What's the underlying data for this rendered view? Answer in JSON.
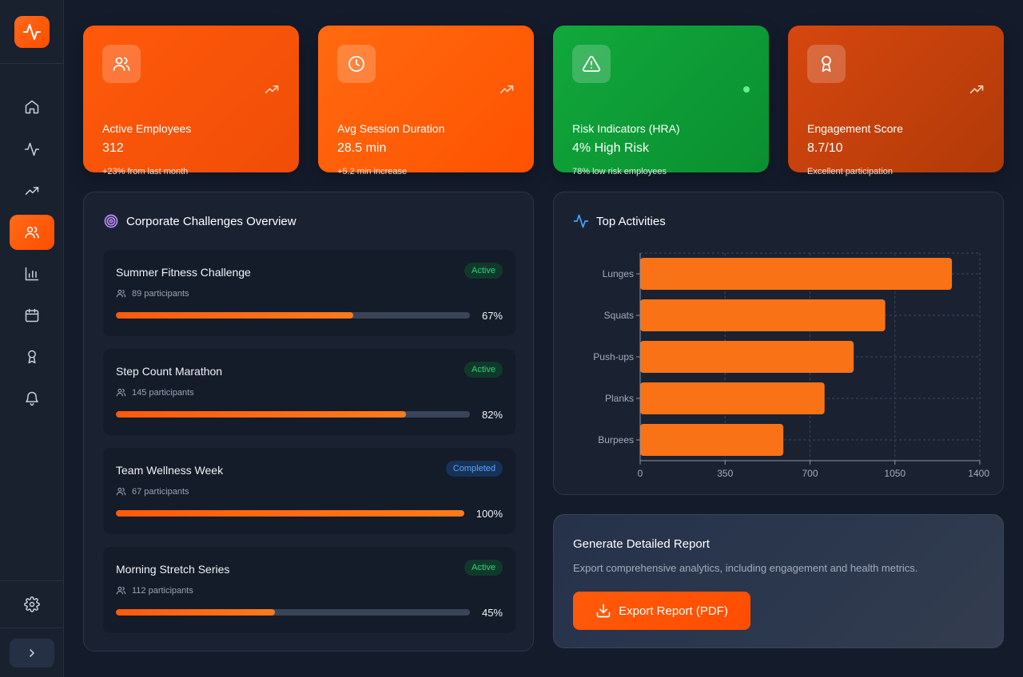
{
  "colors": {
    "accent": "#ff5a0a",
    "green": "#11a83c",
    "active_badge": "#2ed07a",
    "completed_badge": "#5aa3ff",
    "bar": "#f97316"
  },
  "sidebar": {
    "logo_icon": "activity-icon",
    "items": [
      {
        "icon": "home-icon",
        "active": false
      },
      {
        "icon": "activity-icon",
        "active": false
      },
      {
        "icon": "trending-up-icon",
        "active": false
      },
      {
        "icon": "users-icon",
        "active": true
      },
      {
        "icon": "bar-chart-icon",
        "active": false
      },
      {
        "icon": "calendar-icon",
        "active": false
      },
      {
        "icon": "award-icon",
        "active": false
      },
      {
        "icon": "bell-icon",
        "active": false
      }
    ],
    "settings_icon": "gear-icon",
    "expand_icon": "chevron-right-icon"
  },
  "stats": [
    {
      "label": "Active Employees",
      "value": "312",
      "sub": "+23% from last month",
      "icon": "users-icon",
      "corner": "trending-up-icon"
    },
    {
      "label": "Avg Session Duration",
      "value": "28.5 min",
      "sub": "+5.2 min increase",
      "icon": "clock-icon",
      "corner": "trending-up-icon"
    },
    {
      "label": "Risk Indicators (HRA)",
      "value": "4% High Risk",
      "sub": "78% low risk employees",
      "icon": "alert-triangle-icon",
      "corner": "status-dot"
    },
    {
      "label": "Engagement Score",
      "value": "8.7/10",
      "sub": "Excellent participation",
      "icon": "award-icon",
      "corner": "trending-up-icon"
    }
  ],
  "challenges": {
    "title": "Corporate Challenges Overview",
    "icon": "target-icon",
    "items": [
      {
        "name": "Summer Fitness Challenge",
        "participants": "89 participants",
        "status": "Active",
        "progress": 67,
        "progress_label": "67%"
      },
      {
        "name": "Step Count Marathon",
        "participants": "145 participants",
        "status": "Active",
        "progress": 82,
        "progress_label": "82%"
      },
      {
        "name": "Team Wellness Week",
        "participants": "67 participants",
        "status": "Completed",
        "progress": 100,
        "progress_label": "100%"
      },
      {
        "name": "Morning Stretch Series",
        "participants": "112 participants",
        "status": "Active",
        "progress": 45,
        "progress_label": "45%"
      }
    ]
  },
  "activities": {
    "title": "Top Activities",
    "icon": "activity-icon"
  },
  "chart_data": {
    "type": "bar",
    "orientation": "horizontal",
    "categories": [
      "Lunges",
      "Squats",
      "Push-ups",
      "Planks",
      "Burpees"
    ],
    "values": [
      1285,
      1010,
      880,
      760,
      590
    ],
    "xlim": [
      0,
      1400
    ],
    "xticks": [
      0,
      350,
      700,
      1050,
      1400
    ],
    "xtick_labels": [
      "0",
      "350",
      "700",
      "1050",
      "1400"
    ],
    "grid": true,
    "legend": "none"
  },
  "report": {
    "title": "Generate Detailed Report",
    "description": "Export comprehensive analytics, including engagement and health metrics.",
    "button_label": "Export Report (PDF)",
    "button_icon": "download-icon"
  }
}
